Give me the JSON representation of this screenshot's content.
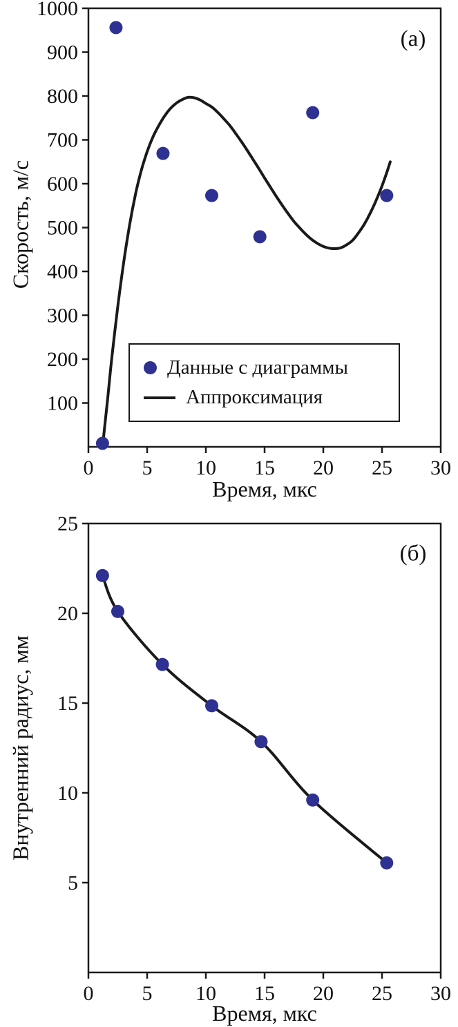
{
  "colors": {
    "marker": "#2e3192",
    "line": "#1a1a1a",
    "frame": "#1a1a1a",
    "background": "#ffffff",
    "text": "#111111"
  },
  "chart_data": [
    {
      "id": "a",
      "type": "scatter",
      "panel_label": "(а)",
      "xlabel": "Время, мкс",
      "ylabel": "Скорость, м/с",
      "xlim": [
        0,
        30
      ],
      "ylim": [
        0,
        1000
      ],
      "xticks": [
        0,
        5,
        10,
        15,
        20,
        25,
        30
      ],
      "yticks": [
        100,
        200,
        300,
        400,
        500,
        600,
        700,
        800,
        900,
        1000
      ],
      "grid": false,
      "legend_position": "lower-center",
      "series": [
        {
          "name": "Данные с диаграммы",
          "type": "scatter",
          "x": [
            1.2,
            2.35,
            6.35,
            10.5,
            14.6,
            19.1,
            25.4
          ],
          "y": [
            8,
            956,
            669,
            573,
            479,
            762,
            573
          ]
        },
        {
          "name": "Аппроксимация",
          "type": "line",
          "x": [
            1.2,
            1.6,
            2,
            2.5,
            3,
            3.5,
            4,
            4.5,
            5,
            5.5,
            6,
            6.5,
            7,
            7.5,
            8,
            8.5,
            9,
            9.5,
            10,
            10.5,
            11,
            11.5,
            12,
            12.5,
            13,
            13.5,
            14,
            14.5,
            15,
            15.5,
            16,
            16.5,
            17,
            17.5,
            18,
            18.5,
            19,
            19.5,
            20,
            20.5,
            21,
            21.5,
            22,
            22.5,
            23,
            23.5,
            24,
            24.5,
            25,
            25.4,
            25.7
          ],
          "y": [
            0,
            100,
            205,
            320,
            420,
            505,
            575,
            630,
            673,
            707,
            733,
            755,
            772,
            784,
            792,
            797,
            796,
            791,
            783,
            775,
            763,
            749,
            734,
            716,
            697,
            677,
            656,
            635,
            613,
            592,
            571,
            551,
            532,
            514,
            499,
            485,
            473,
            464,
            457,
            453,
            452,
            454,
            461,
            471,
            488,
            508,
            533,
            562,
            595,
            625,
            650
          ]
        }
      ]
    },
    {
      "id": "b",
      "type": "line",
      "panel_label": "(б)",
      "xlabel": "Время, мкс",
      "ylabel": "Внутренний радиус, мм",
      "xlim": [
        0,
        30
      ],
      "ylim": [
        0,
        25
      ],
      "xticks": [
        0,
        5,
        10,
        15,
        20,
        25,
        30
      ],
      "yticks": [
        5,
        10,
        15,
        20,
        25
      ],
      "grid": false,
      "series": [
        {
          "type": "line+marker",
          "x": [
            1.2,
            2.5,
            6.3,
            10.5,
            14.7,
            19.1,
            25.4
          ],
          "y": [
            22.1,
            20.1,
            17.15,
            14.85,
            12.85,
            9.6,
            6.1
          ]
        }
      ]
    }
  ]
}
